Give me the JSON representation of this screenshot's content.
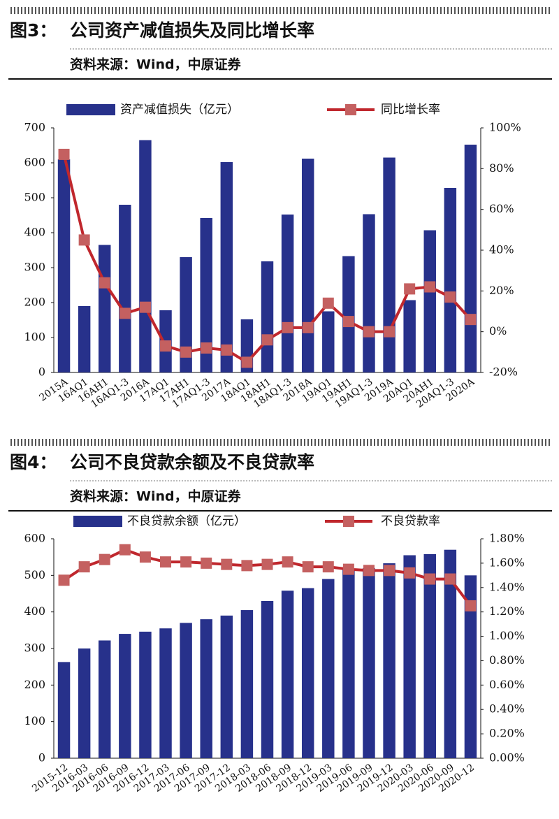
{
  "chart_data": [
    {
      "type": "combo",
      "figure_label": "图3：",
      "title": "公司资产减值损失及同比增长率",
      "source": "资料来源：Wind，中原证券",
      "categories": [
        "2015A",
        "16AQ1",
        "16AH1",
        "16AQ1-3",
        "2016A",
        "17AQ1",
        "17AH1",
        "17AQ1-3",
        "2017A",
        "18AQ1",
        "18AH1",
        "18AQ1-3",
        "2018A",
        "19AQ1",
        "19AH1",
        "19AQ1-3",
        "2019A",
        "20AQ1",
        "20AH1",
        "20AQ1-3",
        "2020A"
      ],
      "series": [
        {
          "name": "资产减值损失（亿元）",
          "kind": "bar",
          "color": "#27318b",
          "values": [
            610,
            190,
            365,
            480,
            665,
            178,
            330,
            442,
            602,
            152,
            318,
            452,
            612,
            175,
            333,
            453,
            615,
            207,
            407,
            528,
            652
          ]
        },
        {
          "name": "同比增长率",
          "kind": "line",
          "axis": "y2",
          "color": "#c0272d",
          "marker_color": "#c46060",
          "values": [
            87,
            45,
            24,
            9,
            12,
            -7,
            -10,
            -8,
            -9,
            -15,
            -4,
            2,
            2,
            14,
            5,
            0,
            0,
            21,
            22,
            17,
            6
          ]
        }
      ],
      "ylim": [
        0,
        700
      ],
      "yticks": [
        0,
        100,
        200,
        300,
        400,
        500,
        600,
        700
      ],
      "y2lim": [
        -20,
        100
      ],
      "y2ticks": [
        {
          "value": -20,
          "label": "-20%"
        },
        {
          "value": 0,
          "label": "0%"
        },
        {
          "value": 20,
          "label": "20%"
        },
        {
          "value": 40,
          "label": "40%"
        },
        {
          "value": 60,
          "label": "60%"
        },
        {
          "value": 80,
          "label": "80%"
        },
        {
          "value": 100,
          "label": "100%"
        }
      ]
    },
    {
      "type": "combo",
      "figure_label": "图4：",
      "title": "公司不良贷款余额及不良贷款率",
      "source": "资料来源：Wind，中原证券",
      "categories": [
        "2015-12",
        "2016-03",
        "2016-06",
        "2016-09",
        "2016-12",
        "2017-03",
        "2017-06",
        "2017-09",
        "2017-12",
        "2018-03",
        "2018-06",
        "2018-09",
        "2018-12",
        "2019-03",
        "2019-06",
        "2019-09",
        "2019-12",
        "2020-03",
        "2020-06",
        "2020-09",
        "2020-12"
      ],
      "series": [
        {
          "name": "不良贷款余额（亿元）",
          "kind": "bar",
          "color": "#27318b",
          "values": [
            263,
            300,
            322,
            340,
            346,
            355,
            370,
            380,
            390,
            405,
            430,
            458,
            465,
            490,
            515,
            520,
            533,
            555,
            558,
            570,
            500
          ]
        },
        {
          "name": "不良贷款率",
          "kind": "line",
          "axis": "y2",
          "color": "#c0272d",
          "marker_color": "#c46060",
          "values": [
            1.46,
            1.57,
            1.63,
            1.71,
            1.65,
            1.61,
            1.61,
            1.6,
            1.59,
            1.58,
            1.59,
            1.61,
            1.57,
            1.57,
            1.55,
            1.54,
            1.54,
            1.52,
            1.47,
            1.47,
            1.25
          ]
        }
      ],
      "ylim": [
        0,
        600
      ],
      "yticks": [
        0,
        100,
        200,
        300,
        400,
        500,
        600
      ],
      "y2lim": [
        0,
        1.8
      ],
      "y2ticks": [
        {
          "value": 0,
          "label": "0.00%"
        },
        {
          "value": 0.2,
          "label": "0.20%"
        },
        {
          "value": 0.4,
          "label": "0.40%"
        },
        {
          "value": 0.6,
          "label": "0.60%"
        },
        {
          "value": 0.8,
          "label": "0.80%"
        },
        {
          "value": 1.0,
          "label": "1.00%"
        },
        {
          "value": 1.2,
          "label": "1.20%"
        },
        {
          "value": 1.4,
          "label": "1.40%"
        },
        {
          "value": 1.6,
          "label": "1.60%"
        },
        {
          "value": 1.8,
          "label": "1.80%"
        }
      ]
    }
  ]
}
